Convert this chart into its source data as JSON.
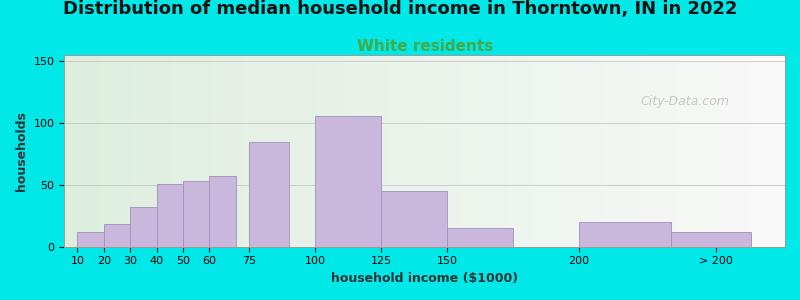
{
  "title": "Distribution of median household income in Thorntown, IN in 2022",
  "subtitle": "White residents",
  "xlabel": "household income ($1000)",
  "ylabel": "households",
  "bar_values": [
    12,
    18,
    32,
    51,
    53,
    57,
    85,
    106,
    45,
    15,
    20,
    12
  ],
  "bar_left_edges": [
    10,
    20,
    30,
    40,
    50,
    60,
    75,
    100,
    125,
    150,
    200,
    235
  ],
  "bar_widths": [
    10,
    10,
    10,
    10,
    10,
    10,
    15,
    25,
    25,
    25,
    35,
    30
  ],
  "xtick_positions": [
    10,
    20,
    30,
    40,
    50,
    60,
    75,
    100,
    125,
    150,
    200,
    252
  ],
  "xtick_labels": [
    "10",
    "20",
    "30",
    "40",
    "50",
    "60",
    "75",
    "100",
    "125",
    "150",
    "200",
    "> 200"
  ],
  "yticks": [
    0,
    50,
    100,
    150
  ],
  "bar_color": "#c9b8dc",
  "bar_edge_color": "#a090c0",
  "background_color": "#00e8e8",
  "plot_bg_left": "#ddeedd",
  "plot_bg_right": "#f8f8f8",
  "ylim": [
    0,
    155
  ],
  "xlim": [
    5,
    278
  ],
  "title_fontsize": 13,
  "subtitle_fontsize": 11,
  "subtitle_color": "#44aa44",
  "axis_label_fontsize": 9,
  "tick_fontsize": 8,
  "watermark_text": "City-Data.com",
  "watermark_color": "#bbbbbb",
  "watermark_fontsize": 9
}
